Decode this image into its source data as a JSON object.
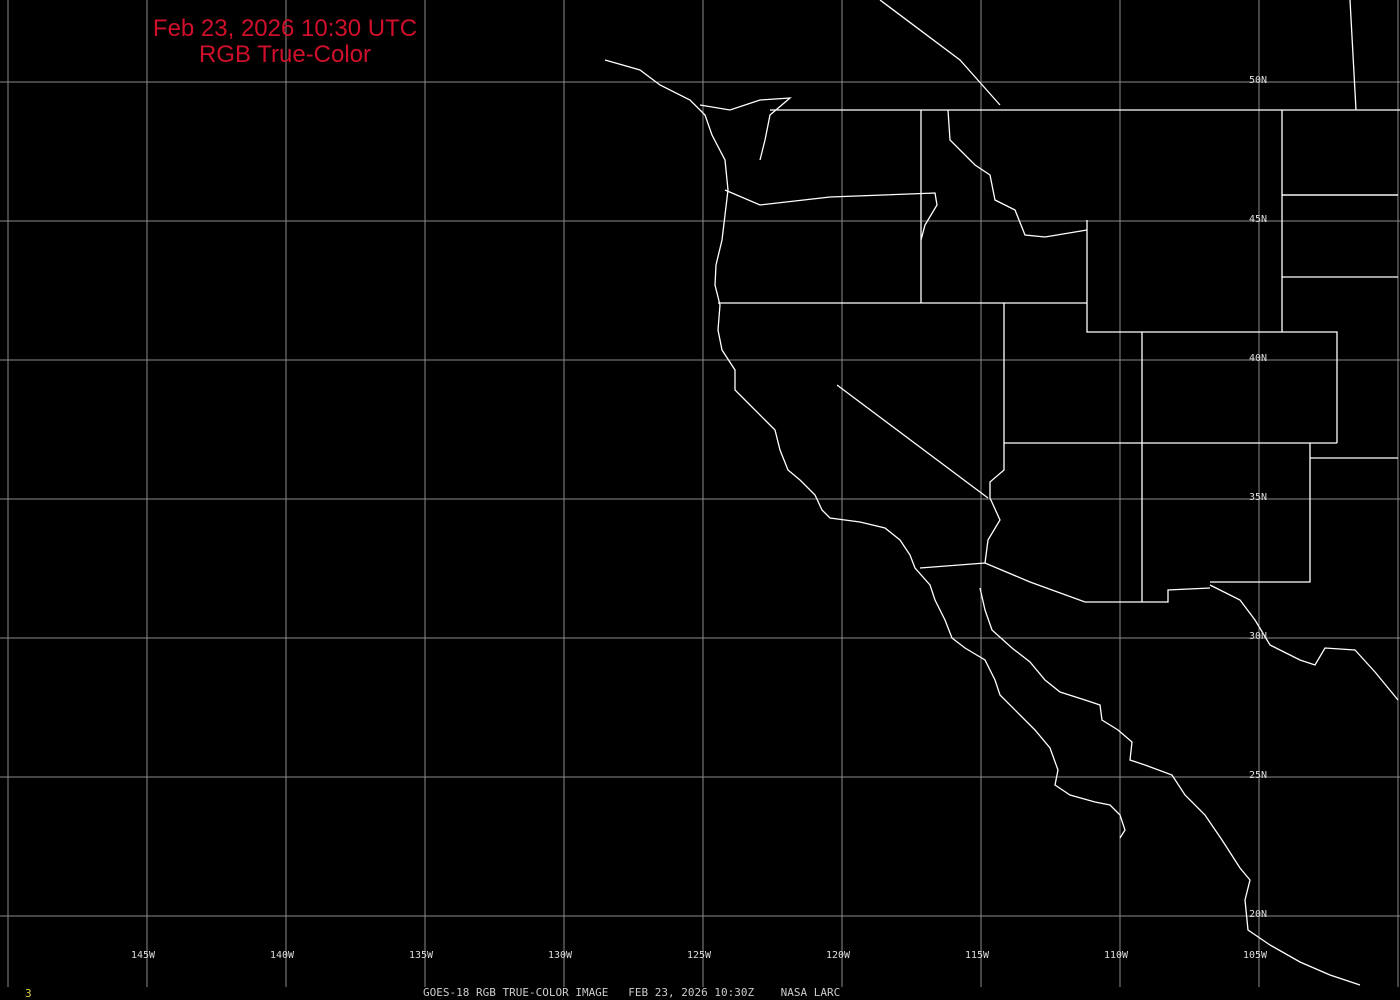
{
  "title": {
    "line1": "Feb 23, 2026 10:30 UTC",
    "line2": "RGB True-Color",
    "color": "#d0102a"
  },
  "longitude_labels": [
    "145W",
    "140W",
    "135W",
    "130W",
    "125W",
    "120W",
    "115W",
    "110W",
    "105W"
  ],
  "latitude_labels": [
    "50N",
    "45N",
    "40N",
    "35N",
    "30N",
    "25N",
    "20N"
  ],
  "footer": {
    "frame_number": "3",
    "caption": "GOES-18 RGB TRUE-COLOR IMAGE   FEB 23, 2026 10:30Z    NASA LARC"
  },
  "colors": {
    "background": "#000000",
    "grid": "#8a8a8a",
    "boundaries": "#ffffff",
    "frame_number": "#e0d040"
  }
}
